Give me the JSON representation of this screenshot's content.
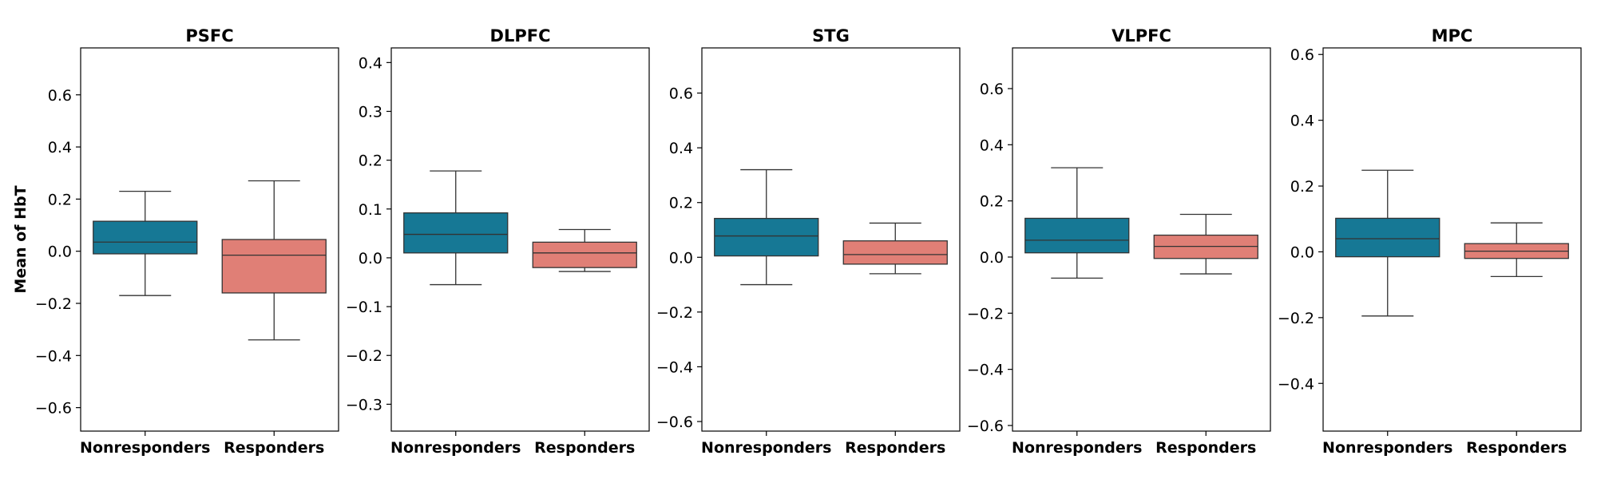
{
  "colors": {
    "nonresponders": "#167895",
    "responders": "#e07f76",
    "line": "#333333",
    "frame": "#000000"
  },
  "chart_data": [
    {
      "type": "box",
      "title": "PSFC",
      "ylabel": "Mean of HbT",
      "categories": [
        "Nonresponders",
        "Responders"
      ],
      "ylim": [
        -0.69,
        0.78
      ],
      "yticks": [
        -0.6,
        -0.4,
        -0.2,
        0.0,
        0.2,
        0.4,
        0.6
      ],
      "ytick_labels": [
        "−0.6",
        "−0.4",
        "−0.2",
        "0.0",
        "0.2",
        "0.4",
        "0.6"
      ],
      "boxes": [
        {
          "whislo": -0.17,
          "q1": -0.01,
          "med": 0.035,
          "q3": 0.115,
          "whishi": 0.23
        },
        {
          "whislo": -0.34,
          "q1": -0.16,
          "med": -0.015,
          "q3": 0.045,
          "whishi": 0.27
        }
      ]
    },
    {
      "type": "box",
      "title": "DLPFC",
      "ylabel": "",
      "categories": [
        "Nonresponders",
        "Responders"
      ],
      "ylim": [
        -0.355,
        0.43
      ],
      "yticks": [
        -0.3,
        -0.2,
        -0.1,
        0.0,
        0.1,
        0.2,
        0.3,
        0.4
      ],
      "ytick_labels": [
        "−0.3",
        "−0.2",
        "−0.1",
        "0.0",
        "0.1",
        "0.2",
        "0.3",
        "0.4"
      ],
      "boxes": [
        {
          "whislo": -0.055,
          "q1": 0.01,
          "med": 0.048,
          "q3": 0.092,
          "whishi": 0.178
        },
        {
          "whislo": -0.028,
          "q1": -0.02,
          "med": 0.01,
          "q3": 0.032,
          "whishi": 0.058
        }
      ]
    },
    {
      "type": "box",
      "title": "STG",
      "ylabel": "",
      "categories": [
        "Nonresponders",
        "Responders"
      ],
      "ylim": [
        -0.635,
        0.765
      ],
      "yticks": [
        -0.6,
        -0.4,
        -0.2,
        0.0,
        0.2,
        0.4,
        0.6
      ],
      "ytick_labels": [
        "−0.6",
        "−0.4",
        "−0.2",
        "0.0",
        "0.2",
        "0.4",
        "0.6"
      ],
      "boxes": [
        {
          "whislo": -0.1,
          "q1": 0.005,
          "med": 0.078,
          "q3": 0.142,
          "whishi": 0.32
        },
        {
          "whislo": -0.06,
          "q1": -0.025,
          "med": 0.01,
          "q3": 0.06,
          "whishi": 0.125
        }
      ]
    },
    {
      "type": "box",
      "title": "VLPFC",
      "ylabel": "",
      "categories": [
        "Nonresponders",
        "Responders"
      ],
      "ylim": [
        -0.62,
        0.745
      ],
      "yticks": [
        -0.6,
        -0.4,
        -0.2,
        0.0,
        0.2,
        0.4,
        0.6
      ],
      "ytick_labels": [
        "−0.6",
        "−0.4",
        "−0.2",
        "0.0",
        "0.2",
        "0.4",
        "0.6"
      ],
      "boxes": [
        {
          "whislo": -0.075,
          "q1": 0.015,
          "med": 0.06,
          "q3": 0.138,
          "whishi": 0.318
        },
        {
          "whislo": -0.06,
          "q1": -0.005,
          "med": 0.038,
          "q3": 0.078,
          "whishi": 0.152
        }
      ]
    },
    {
      "type": "box",
      "title": "MPC",
      "ylabel": "",
      "categories": [
        "Nonresponders",
        "Responders"
      ],
      "ylim": [
        -0.545,
        0.62
      ],
      "yticks": [
        -0.4,
        -0.2,
        0.0,
        0.2,
        0.4,
        0.6
      ],
      "ytick_labels": [
        "−0.4",
        "−0.2",
        "0.0",
        "0.2",
        "0.4",
        "0.6"
      ],
      "boxes": [
        {
          "whislo": -0.195,
          "q1": -0.015,
          "med": 0.04,
          "q3": 0.102,
          "whishi": 0.248
        },
        {
          "whislo": -0.075,
          "q1": -0.02,
          "med": 0.002,
          "q3": 0.025,
          "whishi": 0.088
        }
      ]
    }
  ]
}
